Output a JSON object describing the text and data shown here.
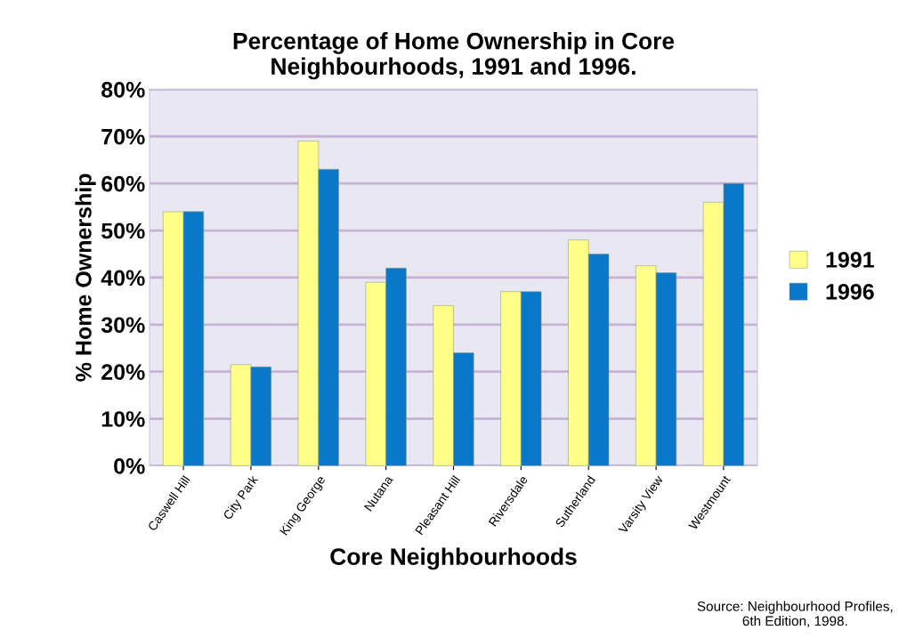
{
  "chart_data": {
    "type": "bar",
    "title": "Percentage of Home Ownership in Core\nNeighbourhoods, 1991 and 1996.",
    "xlabel": "Core Neighbourhoods",
    "ylabel": "% Home Ownership",
    "categories": [
      "Caswell Hill",
      "City Park",
      "King George",
      "Nutana",
      "Pleasant Hill",
      "Riversdale",
      "Sutherland",
      "Varsity View",
      "Westmount"
    ],
    "series": [
      {
        "name": "1991",
        "color": "#ffff88",
        "values": [
          54,
          21.5,
          69,
          39,
          34,
          37,
          48,
          42.5,
          56
        ]
      },
      {
        "name": "1996",
        "color": "#0a78c8",
        "values": [
          54,
          21,
          63,
          42,
          24,
          37,
          45,
          41,
          60
        ]
      }
    ],
    "ylim": [
      0,
      80
    ],
    "yticks": [
      {
        "value": 0,
        "label": "0%"
      },
      {
        "value": 10,
        "label": "10%"
      },
      {
        "value": 20,
        "label": "20%"
      },
      {
        "value": 30,
        "label": "30%"
      },
      {
        "value": 40,
        "label": "40%"
      },
      {
        "value": 50,
        "label": "50%"
      },
      {
        "value": 60,
        "label": "60%"
      },
      {
        "value": 70,
        "label": "70%"
      },
      {
        "value": 80,
        "label": "80%"
      }
    ],
    "grid": "y",
    "legend": "right",
    "annotations": [
      "Source: Neighbourhood Profiles,\n6th Edition, 1998."
    ]
  }
}
